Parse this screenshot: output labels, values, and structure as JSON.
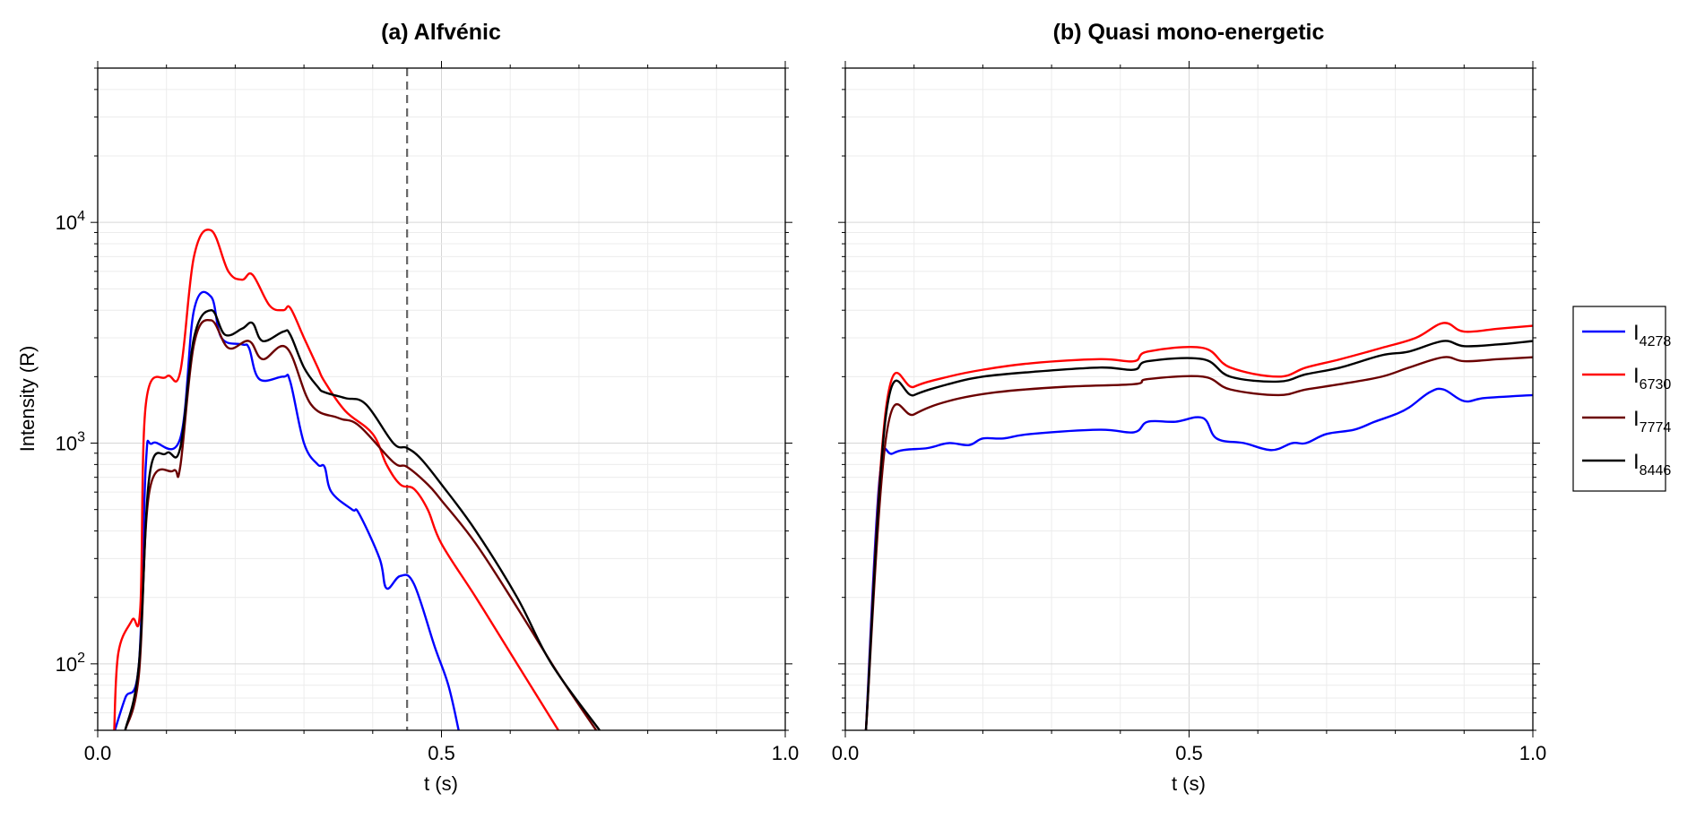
{
  "chart_data": [
    {
      "type": "line",
      "title": "(a) Alfvénic",
      "xlabel": "t (s)",
      "ylabel": "Intensity (R)",
      "xlim": [
        0,
        1.0
      ],
      "ylim": [
        50,
        50000
      ],
      "yscale": "log",
      "xticks": [
        "0.0",
        "0.5",
        "1.0"
      ],
      "yticks": [
        {
          "base": "10",
          "exp": "2",
          "value": 100
        },
        {
          "base": "10",
          "exp": "3",
          "value": 1000
        },
        {
          "base": "10",
          "exp": "4",
          "value": 10000
        }
      ],
      "grid": true,
      "annotation": {
        "type": "vertical-dashed-line",
        "x": 0.45
      },
      "series": [
        {
          "name": "I4278",
          "color": "#0000ff",
          "t": [
            0.025,
            0.04,
            0.06,
            0.07,
            0.08,
            0.12,
            0.14,
            0.165,
            0.18,
            0.21,
            0.22,
            0.235,
            0.27,
            0.28,
            0.3,
            0.32,
            0.33,
            0.34,
            0.37,
            0.38,
            0.41,
            0.42,
            0.44,
            0.46,
            0.49,
            0.51,
            0.525
          ],
          "values": [
            50,
            70,
            100,
            800,
            1000,
            1050,
            4000,
            4600,
            3000,
            2800,
            2700,
            1950,
            2000,
            1900,
            1000,
            800,
            780,
            600,
            500,
            480,
            300,
            220,
            250,
            230,
            120,
            80,
            50
          ]
        },
        {
          "name": "I6730",
          "color": "#ff0000",
          "t": [
            0.024,
            0.03,
            0.05,
            0.062,
            0.07,
            0.1,
            0.12,
            0.14,
            0.165,
            0.19,
            0.21,
            0.225,
            0.25,
            0.27,
            0.28,
            0.3,
            0.32,
            0.33,
            0.36,
            0.4,
            0.42,
            0.44,
            0.46,
            0.48,
            0.5,
            0.55,
            0.61,
            0.67
          ],
          "values": [
            50,
            112,
            158,
            180,
            1500,
            2000,
            2100,
            7000,
            9200,
            6000,
            5500,
            5800,
            4200,
            4000,
            4100,
            3000,
            2200,
            1900,
            1400,
            1100,
            800,
            650,
            620,
            500,
            350,
            200,
            100,
            50
          ]
        },
        {
          "name": "I7774",
          "color": "#6b0000",
          "t": [
            0.04,
            0.06,
            0.075,
            0.11,
            0.12,
            0.14,
            0.165,
            0.19,
            0.22,
            0.24,
            0.275,
            0.31,
            0.35,
            0.38,
            0.43,
            0.45,
            0.48,
            0.5,
            0.55,
            0.61,
            0.67,
            0.725
          ],
          "values": [
            50,
            90,
            600,
            750,
            780,
            2800,
            3600,
            2700,
            2900,
            2400,
            2700,
            1500,
            1300,
            1200,
            820,
            780,
            650,
            550,
            350,
            180,
            90,
            50
          ]
        },
        {
          "name": "I8446",
          "color": "#000000",
          "t": [
            0.04,
            0.06,
            0.075,
            0.1,
            0.12,
            0.14,
            0.165,
            0.185,
            0.21,
            0.225,
            0.24,
            0.27,
            0.28,
            0.3,
            0.32,
            0.33,
            0.36,
            0.39,
            0.43,
            0.45,
            0.47,
            0.5,
            0.55,
            0.61,
            0.66,
            0.73
          ],
          "values": [
            50,
            100,
            700,
            900,
            950,
            3000,
            4000,
            3100,
            3300,
            3500,
            2900,
            3200,
            3100,
            2200,
            1800,
            1700,
            1600,
            1500,
            1000,
            950,
            850,
            650,
            400,
            200,
            100,
            50
          ]
        }
      ]
    },
    {
      "type": "line",
      "title": "(b) Quasi mono-energetic",
      "xlabel": "t (s)",
      "xlim": [
        0,
        1.0
      ],
      "ylim": [
        50,
        50000
      ],
      "yscale": "log",
      "xticks": [
        "0.0",
        "0.5",
        "1.0"
      ],
      "grid": true,
      "series": [
        {
          "name": "I4278",
          "color": "#0000ff",
          "t": [
            0.03,
            0.05,
            0.07,
            0.12,
            0.15,
            0.18,
            0.2,
            0.23,
            0.27,
            0.37,
            0.42,
            0.44,
            0.48,
            0.52,
            0.54,
            0.58,
            0.62,
            0.65,
            0.67,
            0.7,
            0.74,
            0.77,
            0.8,
            0.82,
            0.85,
            0.87,
            0.9,
            0.93,
            1.0
          ],
          "values": [
            50,
            700,
            900,
            950,
            1000,
            980,
            1050,
            1050,
            1100,
            1150,
            1120,
            1250,
            1250,
            1300,
            1050,
            1000,
            930,
            1000,
            1000,
            1100,
            1150,
            1250,
            1350,
            1450,
            1700,
            1750,
            1550,
            1600,
            1650
          ]
        },
        {
          "name": "I6730",
          "color": "#ff0000",
          "t": [
            0.03,
            0.06,
            0.1,
            0.15,
            0.2,
            0.27,
            0.37,
            0.42,
            0.44,
            0.52,
            0.56,
            0.63,
            0.67,
            0.72,
            0.78,
            0.83,
            0.87,
            0.9,
            0.95,
            1.0
          ],
          "values": [
            50,
            1500,
            1800,
            2000,
            2150,
            2300,
            2400,
            2350,
            2600,
            2700,
            2200,
            2000,
            2200,
            2400,
            2700,
            3000,
            3500,
            3200,
            3300,
            3400
          ]
        },
        {
          "name": "I7774",
          "color": "#6b0000",
          "t": [
            0.03,
            0.06,
            0.1,
            0.15,
            0.22,
            0.32,
            0.42,
            0.44,
            0.52,
            0.56,
            0.63,
            0.67,
            0.72,
            0.78,
            0.82,
            0.87,
            0.9,
            0.95,
            1.0
          ],
          "values": [
            50,
            1100,
            1350,
            1550,
            1700,
            1800,
            1850,
            1950,
            2000,
            1750,
            1650,
            1750,
            1850,
            2000,
            2200,
            2450,
            2350,
            2400,
            2450
          ]
        },
        {
          "name": "I8446",
          "color": "#000000",
          "t": [
            0.03,
            0.06,
            0.1,
            0.15,
            0.2,
            0.27,
            0.37,
            0.42,
            0.44,
            0.52,
            0.56,
            0.63,
            0.67,
            0.72,
            0.78,
            0.82,
            0.87,
            0.9,
            0.95,
            1.0
          ],
          "values": [
            50,
            1400,
            1650,
            1850,
            2000,
            2100,
            2200,
            2150,
            2350,
            2400,
            2000,
            1900,
            2050,
            2200,
            2500,
            2600,
            2900,
            2750,
            2800,
            2900
          ]
        }
      ]
    }
  ],
  "legend": {
    "placement": "right",
    "entries": [
      {
        "base": "I",
        "sub": "4278",
        "color": "#0000ff"
      },
      {
        "base": "I",
        "sub": "6730",
        "color": "#ff0000"
      },
      {
        "base": "I",
        "sub": "7774",
        "color": "#6b0000"
      },
      {
        "base": "I",
        "sub": "8446",
        "color": "#000000"
      }
    ]
  }
}
